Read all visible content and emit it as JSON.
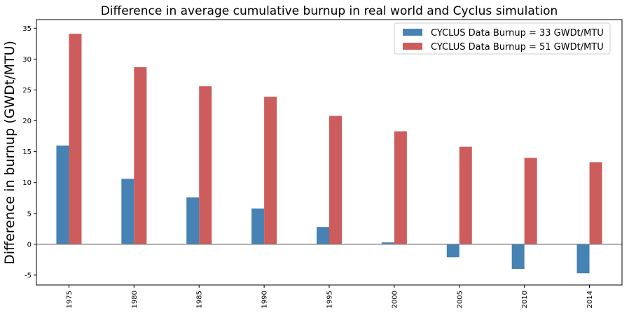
{
  "chart_data": {
    "type": "bar",
    "title": "Difference in average cumulative burnup in real world and Cyclus simulation",
    "xlabel": "",
    "ylabel": "Difference in burnup (GWDt/MTU)",
    "categories": [
      "1975",
      "1980",
      "1985",
      "1990",
      "1995",
      "2000",
      "2005",
      "2010",
      "2014"
    ],
    "series": [
      {
        "name": "CYCLUS Data Burnup = 33 GWDt/MTU",
        "color": "#4682b4",
        "values": [
          16.0,
          10.6,
          7.6,
          5.8,
          2.8,
          0.3,
          -2.1,
          -4.0,
          -4.7
        ]
      },
      {
        "name": "CYCLUS Data Burnup = 51 GWDt/MTU",
        "color": "#cd5c5c",
        "values": [
          34.1,
          28.7,
          25.6,
          23.9,
          20.8,
          18.3,
          15.8,
          14.0,
          13.3
        ]
      }
    ],
    "ylim": [
      -6.6,
      36.4
    ],
    "yticks": [
      -5,
      0,
      5,
      10,
      15,
      20,
      25,
      30,
      35
    ],
    "zero_line": true,
    "grid": false,
    "legend_position": "top-right"
  }
}
